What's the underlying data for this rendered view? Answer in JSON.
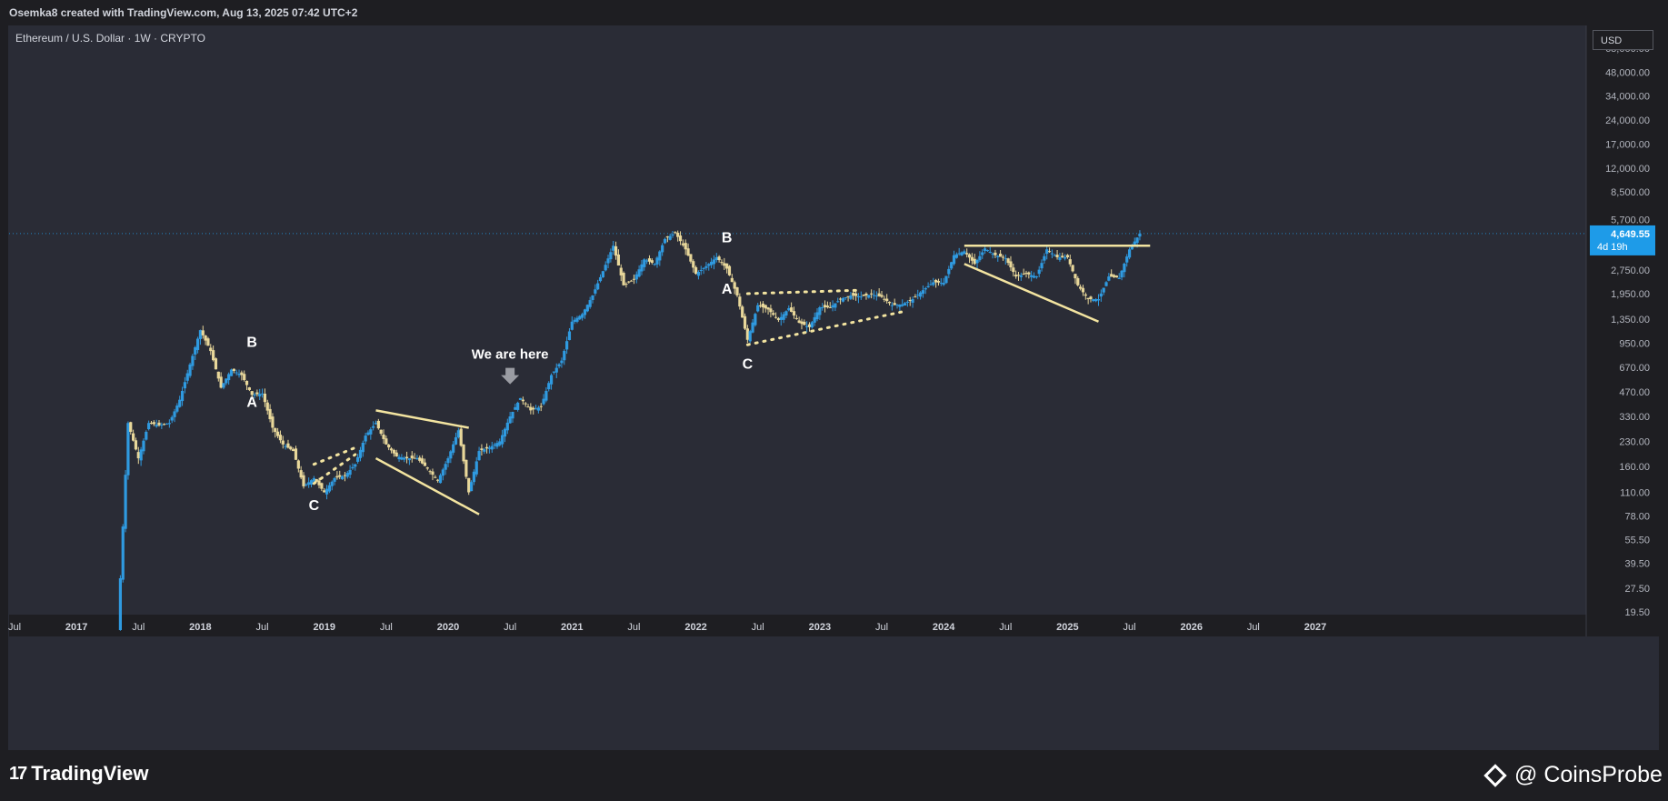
{
  "attribution": "Osemka8 created with TradingView.com, Aug 13, 2025 07:42 UTC+2",
  "symbol_label": "Ethereum / U.S. Dollar · 1W · CRYPTO",
  "currency_button": "USD",
  "footer": {
    "logo_text": "TradingView",
    "logo_mark": "17",
    "brand": "@ CoinsProbe"
  },
  "colors": {
    "background": "#2a2c36",
    "up": "#2f9ae0",
    "down": "#e8d79a",
    "trendline": "#f3e4a0",
    "price_tag": "#1e9be8"
  },
  "chart_data": {
    "type": "candlestick",
    "scale": "log",
    "xlabel": "",
    "ylabel": "",
    "y_tick_labels": [
      "19.50",
      "27.50",
      "39.50",
      "55.50",
      "78.00",
      "110.00",
      "160.00",
      "230.00",
      "330.00",
      "470.00",
      "670.00",
      "950.00",
      "1,350.00",
      "1,950.00",
      "2,750.00",
      "4,649.55",
      "5,700.00",
      "8,500.00",
      "12,000.00",
      "17,000.00",
      "24,000.00",
      "34,000.00",
      "48,000.00",
      "68,000.00"
    ],
    "y_tick_values": [
      19.5,
      27.5,
      39.5,
      55.5,
      78,
      110,
      160,
      230,
      330,
      470,
      670,
      950,
      1350,
      1950,
      2750,
      4649.55,
      5700,
      8500,
      12000,
      17000,
      24000,
      34000,
      48000,
      68000
    ],
    "x_tick_labels": [
      "Jul",
      "2017",
      "Jul",
      "2018",
      "Jul",
      "2019",
      "Jul",
      "2020",
      "Jul",
      "2021",
      "Jul",
      "2022",
      "Jul",
      "2023",
      "Jul",
      "2024",
      "Jul",
      "2025",
      "Jul",
      "2026",
      "Jul",
      "2027"
    ],
    "x_tick_dates": [
      "2016-07",
      "2017-01",
      "2017-07",
      "2018-01",
      "2018-07",
      "2019-01",
      "2019-07",
      "2020-01",
      "2020-07",
      "2021-01",
      "2021-07",
      "2022-01",
      "2022-07",
      "2023-01",
      "2023-07",
      "2024-01",
      "2024-07",
      "2025-01",
      "2025-07",
      "2026-01",
      "2026-07",
      "2027-01"
    ],
    "current_price": "4,649.55",
    "countdown": "4d 19h",
    "price_path": [
      [
        "2017-05",
        15
      ],
      [
        "2017-06",
        300
      ],
      [
        "2017-07",
        180
      ],
      [
        "2017-08",
        300
      ],
      [
        "2017-09",
        290
      ],
      [
        "2017-10",
        300
      ],
      [
        "2017-11",
        420
      ],
      [
        "2017-12",
        700
      ],
      [
        "2018-01",
        1150
      ],
      [
        "2018-02",
        850
      ],
      [
        "2018-03",
        500
      ],
      [
        "2018-04",
        650
      ],
      [
        "2018-05",
        600
      ],
      [
        "2018-06",
        450
      ],
      [
        "2018-07",
        460
      ],
      [
        "2018-08",
        280
      ],
      [
        "2018-09",
        220
      ],
      [
        "2018-10",
        200
      ],
      [
        "2018-11",
        120
      ],
      [
        "2018-12",
        135
      ],
      [
        "2019-01",
        110
      ],
      [
        "2019-02",
        135
      ],
      [
        "2019-03",
        140
      ],
      [
        "2019-04",
        165
      ],
      [
        "2019-05",
        250
      ],
      [
        "2019-06",
        300
      ],
      [
        "2019-07",
        220
      ],
      [
        "2019-08",
        185
      ],
      [
        "2019-09",
        180
      ],
      [
        "2019-10",
        180
      ],
      [
        "2019-11",
        155
      ],
      [
        "2019-12",
        130
      ],
      [
        "2020-01",
        180
      ],
      [
        "2020-02",
        270
      ],
      [
        "2020-03",
        110
      ],
      [
        "2020-04",
        200
      ],
      [
        "2020-05",
        210
      ],
      [
        "2020-06",
        230
      ],
      [
        "2020-07",
        330
      ],
      [
        "2020-08",
        430
      ],
      [
        "2020-09",
        360
      ],
      [
        "2020-10",
        380
      ],
      [
        "2020-11",
        600
      ],
      [
        "2020-12",
        740
      ],
      [
        "2021-01",
        1300
      ],
      [
        "2021-02",
        1450
      ],
      [
        "2021-03",
        1900
      ],
      [
        "2021-04",
        2700
      ],
      [
        "2021-05",
        3900
      ],
      [
        "2021-06",
        2200
      ],
      [
        "2021-07",
        2400
      ],
      [
        "2021-08",
        3200
      ],
      [
        "2021-09",
        3000
      ],
      [
        "2021-10",
        4300
      ],
      [
        "2021-11",
        4700
      ],
      [
        "2021-12",
        3700
      ],
      [
        "2022-01",
        2600
      ],
      [
        "2022-02",
        2900
      ],
      [
        "2022-03",
        3300
      ],
      [
        "2022-04",
        2800
      ],
      [
        "2022-05",
        1900
      ],
      [
        "2022-06",
        1000
      ],
      [
        "2022-07",
        1650
      ],
      [
        "2022-08",
        1550
      ],
      [
        "2022-09",
        1330
      ],
      [
        "2022-10",
        1580
      ],
      [
        "2022-11",
        1280
      ],
      [
        "2022-12",
        1200
      ],
      [
        "2023-01",
        1600
      ],
      [
        "2023-02",
        1600
      ],
      [
        "2023-03",
        1800
      ],
      [
        "2023-04",
        1900
      ],
      [
        "2023-05",
        1870
      ],
      [
        "2023-06",
        1930
      ],
      [
        "2023-07",
        1860
      ],
      [
        "2023-08",
        1650
      ],
      [
        "2023-09",
        1670
      ],
      [
        "2023-10",
        1800
      ],
      [
        "2023-11",
        2050
      ],
      [
        "2023-12",
        2300
      ],
      [
        "2024-01",
        2280
      ],
      [
        "2024-02",
        3400
      ],
      [
        "2024-03",
        3600
      ],
      [
        "2024-04",
        3000
      ],
      [
        "2024-05",
        3750
      ],
      [
        "2024-06",
        3400
      ],
      [
        "2024-07",
        3250
      ],
      [
        "2024-08",
        2500
      ],
      [
        "2024-09",
        2600
      ],
      [
        "2024-10",
        2500
      ],
      [
        "2024-11",
        3700
      ],
      [
        "2024-12",
        3300
      ],
      [
        "2025-01",
        3300
      ],
      [
        "2025-02",
        2200
      ],
      [
        "2025-03",
        1800
      ],
      [
        "2025-04",
        1800
      ],
      [
        "2025-05",
        2500
      ],
      [
        "2025-06",
        2450
      ],
      [
        "2025-07",
        3700
      ],
      [
        "2025-08",
        4650
      ]
    ],
    "annotations": [
      {
        "text": "A",
        "date": "2018-06",
        "price": 380
      },
      {
        "text": "B",
        "date": "2018-06",
        "price": 900
      },
      {
        "text": "C",
        "date": "2018-12",
        "price": 85
      },
      {
        "text": "We are here",
        "date": "2020-07",
        "price": 760
      },
      {
        "text": "A",
        "date": "2022-04",
        "price": 1950
      },
      {
        "text": "B",
        "date": "2022-04",
        "price": 4100
      },
      {
        "text": "C",
        "date": "2022-06",
        "price": 660
      }
    ],
    "trendlines": [
      {
        "style": "dotted",
        "from": [
          "2018-12",
          165
        ],
        "to": [
          "2019-04",
          210
        ]
      },
      {
        "style": "dotted",
        "from": [
          "2018-12",
          125
        ],
        "to": [
          "2019-04",
          190
        ]
      },
      {
        "style": "solid",
        "from": [
          "2019-06",
          360
        ],
        "to": [
          "2020-03",
          280
        ]
      },
      {
        "style": "solid",
        "from": [
          "2019-06",
          180
        ],
        "to": [
          "2020-04",
          80
        ]
      },
      {
        "style": "dotted",
        "from": [
          "2022-06",
          1950
        ],
        "to": [
          "2023-05",
          2050
        ]
      },
      {
        "style": "dotted",
        "from": [
          "2022-06",
          930
        ],
        "to": [
          "2023-09",
          1500
        ]
      },
      {
        "style": "solid",
        "from": [
          "2024-03",
          3900
        ],
        "to": [
          "2025-09",
          3900
        ]
      },
      {
        "style": "solid",
        "from": [
          "2024-03",
          3000
        ],
        "to": [
          "2025-04",
          1300
        ]
      }
    ]
  }
}
